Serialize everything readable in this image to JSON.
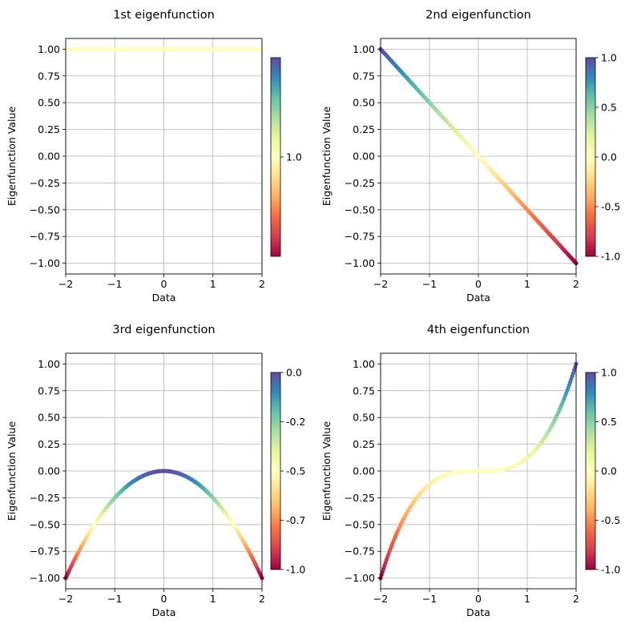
{
  "chart_data": [
    {
      "type": "scatter",
      "title": "1st eigenfunction",
      "xlabel": "Data",
      "ylabel": "Eigenfunction Value",
      "xlim": [
        -2,
        2
      ],
      "ylim": [
        -1.1,
        1.1
      ],
      "xticks": [
        -2,
        -1,
        0,
        1,
        2
      ],
      "xtick_labels": [
        "−2",
        "−1",
        "0",
        "1",
        "2"
      ],
      "yticks": [
        1.0,
        0.75,
        0.5,
        0.25,
        0.0,
        -0.25,
        -0.5,
        -0.75,
        -1.0
      ],
      "ytick_labels": [
        "1.00",
        "0.75",
        "0.50",
        "0.25",
        "0.00",
        "−0.25",
        "−0.50",
        "−0.75",
        "−1.00"
      ],
      "grid": true,
      "function": "constant",
      "n_points": 200,
      "colormap": "Spectral",
      "colorbar": {
        "min": 0,
        "max": 2,
        "ticks": [
          1.0
        ],
        "tick_labels": [
          "1.0"
        ]
      }
    },
    {
      "type": "scatter",
      "title": "2nd eigenfunction",
      "xlabel": "Data",
      "ylabel": "Eigenfunction Value",
      "xlim": [
        -2,
        2
      ],
      "ylim": [
        -1.1,
        1.1
      ],
      "xticks": [
        -2,
        -1,
        0,
        1,
        2
      ],
      "xtick_labels": [
        "−2",
        "−1",
        "0",
        "1",
        "2"
      ],
      "yticks": [
        1.0,
        0.75,
        0.5,
        0.25,
        0.0,
        -0.25,
        -0.5,
        -0.75,
        -1.0
      ],
      "ytick_labels": [
        "1.00",
        "0.75",
        "0.50",
        "0.25",
        "0.00",
        "−0.25",
        "−0.50",
        "−0.75",
        "−1.00"
      ],
      "grid": true,
      "function": "linear_decreasing",
      "n_points": 200,
      "colormap": "Spectral",
      "colorbar": {
        "min": -1,
        "max": 1,
        "ticks": [
          1.0,
          0.5,
          0.0,
          -0.5,
          -1.0
        ],
        "tick_labels": [
          "1.0",
          "0.5",
          "0.0",
          "-0.5",
          "-1.0"
        ]
      }
    },
    {
      "type": "scatter",
      "title": "3rd eigenfunction",
      "xlabel": "Data",
      "ylabel": "Eigenfunction Value",
      "xlim": [
        -2,
        2
      ],
      "ylim": [
        -1.1,
        1.1
      ],
      "xticks": [
        -2,
        -1,
        0,
        1,
        2
      ],
      "xtick_labels": [
        "−2",
        "−1",
        "0",
        "1",
        "2"
      ],
      "yticks": [
        1.0,
        0.75,
        0.5,
        0.25,
        0.0,
        -0.25,
        -0.5,
        -0.75,
        -1.0
      ],
      "ytick_labels": [
        "1.00",
        "0.75",
        "0.50",
        "0.25",
        "0.00",
        "−0.25",
        "−0.50",
        "−0.75",
        "−1.00"
      ],
      "grid": true,
      "function": "negative_quadratic",
      "n_points": 200,
      "colormap": "Spectral",
      "colorbar": {
        "min": -1,
        "max": 0,
        "ticks": [
          0.0,
          -0.25,
          -0.5,
          -0.75,
          -1.0
        ],
        "tick_labels": [
          "0.0",
          "-0.2",
          "-0.5",
          "-0.7",
          "-1.0"
        ]
      }
    },
    {
      "type": "scatter",
      "title": "4th eigenfunction",
      "xlabel": "Data",
      "ylabel": "Eigenfunction Value",
      "xlim": [
        -2,
        2
      ],
      "ylim": [
        -1.1,
        1.1
      ],
      "xticks": [
        -2,
        -1,
        0,
        1,
        2
      ],
      "xtick_labels": [
        "−2",
        "−1",
        "0",
        "1",
        "2"
      ],
      "yticks": [
        1.0,
        0.75,
        0.5,
        0.25,
        0.0,
        -0.25,
        -0.5,
        -0.75,
        -1.0
      ],
      "ytick_labels": [
        "1.00",
        "0.75",
        "0.50",
        "0.25",
        "0.00",
        "−0.25",
        "−0.50",
        "−0.75",
        "−1.00"
      ],
      "grid": true,
      "function": "cubic",
      "n_points": 200,
      "colormap": "Spectral",
      "colorbar": {
        "min": -1,
        "max": 1,
        "ticks": [
          1.0,
          0.5,
          0.0,
          -0.5,
          -1.0
        ],
        "tick_labels": [
          "1.0",
          "0.5",
          "0.0",
          "-0.5",
          "-1.0"
        ]
      }
    }
  ]
}
